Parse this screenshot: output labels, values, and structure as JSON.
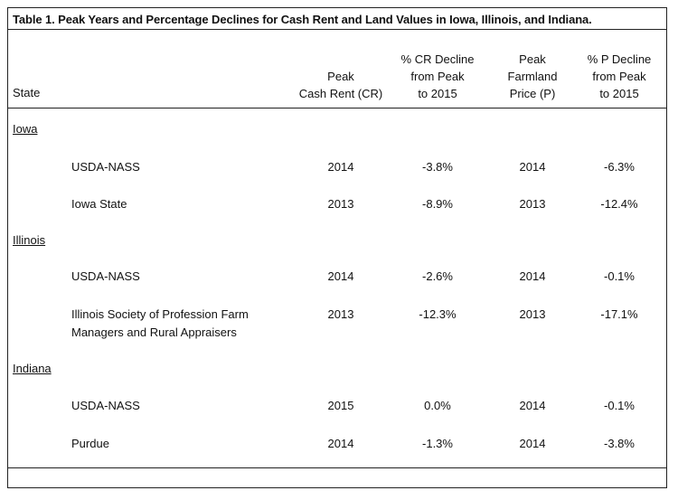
{
  "title": "Table 1.  Peak Years and Percentage Declines for Cash Rent and Land Values in Iowa, Illinois, and Indiana.",
  "headers": {
    "state": "State",
    "col1": [
      "Peak",
      "Cash Rent (CR)"
    ],
    "col2": [
      "% CR Decline",
      "from Peak",
      "to 2015"
    ],
    "col3": [
      "Peak",
      "Farmland",
      "Price (P)"
    ],
    "col4": [
      "% P Decline",
      "from Peak",
      "to 2015"
    ]
  },
  "groups": [
    {
      "state": "Iowa",
      "rows": [
        {
          "source": [
            "USDA-NASS"
          ],
          "peak_cr": "2014",
          "cr_decline": "-3.8%",
          "peak_p": "2014",
          "p_decline": "-6.3%"
        },
        {
          "source": [
            "Iowa State"
          ],
          "peak_cr": "2013",
          "cr_decline": "-8.9%",
          "peak_p": "2013",
          "p_decline": "-12.4%"
        }
      ]
    },
    {
      "state": "Illinois",
      "rows": [
        {
          "source": [
            "USDA-NASS"
          ],
          "peak_cr": "2014",
          "cr_decline": "-2.6%",
          "peak_p": "2014",
          "p_decline": "-0.1%"
        },
        {
          "source": [
            "Illinois Society of Profession Farm",
            "Managers and Rural Appraisers"
          ],
          "peak_cr": "2013",
          "cr_decline": "-12.3%",
          "peak_p": "2013",
          "p_decline": "-17.1%"
        }
      ]
    },
    {
      "state": "Indiana",
      "rows": [
        {
          "source": [
            "USDA-NASS"
          ],
          "peak_cr": "2015",
          "cr_decline": "0.0%",
          "peak_p": "2014",
          "p_decline": "-0.1%"
        },
        {
          "source": [
            "Purdue"
          ],
          "peak_cr": "2014",
          "cr_decline": "-1.3%",
          "peak_p": "2014",
          "p_decline": "-3.8%"
        }
      ]
    }
  ]
}
